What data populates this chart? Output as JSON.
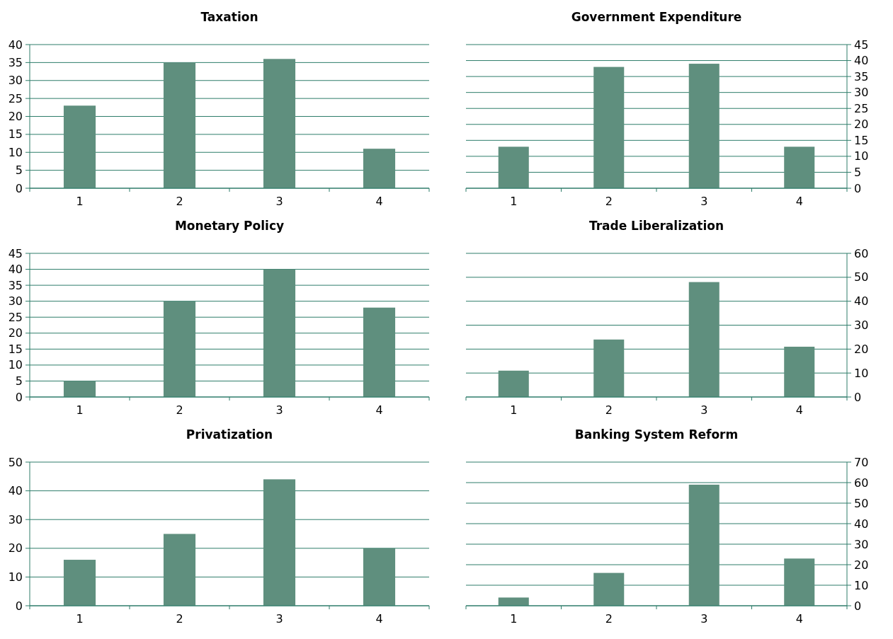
{
  "chart_data": [
    {
      "type": "bar",
      "title": "Taxation",
      "categories": [
        "1",
        "2",
        "3",
        "4"
      ],
      "values": [
        23,
        35,
        36,
        11
      ],
      "color": "#5f8f7e",
      "ylim": [
        0,
        40
      ],
      "yticks": [
        0,
        5,
        10,
        15,
        20,
        25,
        30,
        35,
        40
      ],
      "grid": "y"
    },
    {
      "type": "bar",
      "title": "Government Expenditure",
      "categories": [
        "1",
        "2",
        "3",
        "4"
      ],
      "values": [
        13,
        38,
        39,
        13
      ],
      "color": "#5f8f7e",
      "ylim": [
        0,
        45
      ],
      "yticks": [
        0,
        5,
        10,
        15,
        20,
        25,
        30,
        35,
        40,
        45
      ],
      "grid": "y"
    },
    {
      "type": "bar",
      "title": "Monetary Policy",
      "categories": [
        "1",
        "2",
        "3",
        "4"
      ],
      "values": [
        5,
        30,
        40,
        28
      ],
      "color": "#5f8f7e",
      "ylim": [
        0,
        45
      ],
      "yticks": [
        0,
        5,
        10,
        15,
        20,
        25,
        30,
        35,
        40,
        45
      ],
      "grid": "y"
    },
    {
      "type": "bar",
      "title": "Trade Liberalization",
      "categories": [
        "1",
        "2",
        "3",
        "4"
      ],
      "values": [
        11,
        24,
        48,
        21
      ],
      "color": "#5f8f7e",
      "ylim": [
        0,
        60
      ],
      "yticks": [
        0,
        10,
        20,
        30,
        40,
        50,
        60
      ],
      "grid": "y"
    },
    {
      "type": "bar",
      "title": "Privatization",
      "categories": [
        "1",
        "2",
        "3",
        "4"
      ],
      "values": [
        16,
        25,
        44,
        20
      ],
      "color": "#5f8f7e",
      "ylim": [
        0,
        50
      ],
      "yticks": [
        0,
        10,
        20,
        30,
        40,
        50
      ],
      "grid": "y"
    },
    {
      "type": "bar",
      "title": "Banking System Reform",
      "categories": [
        "1",
        "2",
        "3",
        "4"
      ],
      "values": [
        4,
        16,
        59,
        23
      ],
      "color": "#5f8f7e",
      "ylim": [
        0,
        70
      ],
      "yticks": [
        0,
        10,
        20,
        30,
        40,
        50,
        60,
        70
      ],
      "grid": "y"
    }
  ]
}
